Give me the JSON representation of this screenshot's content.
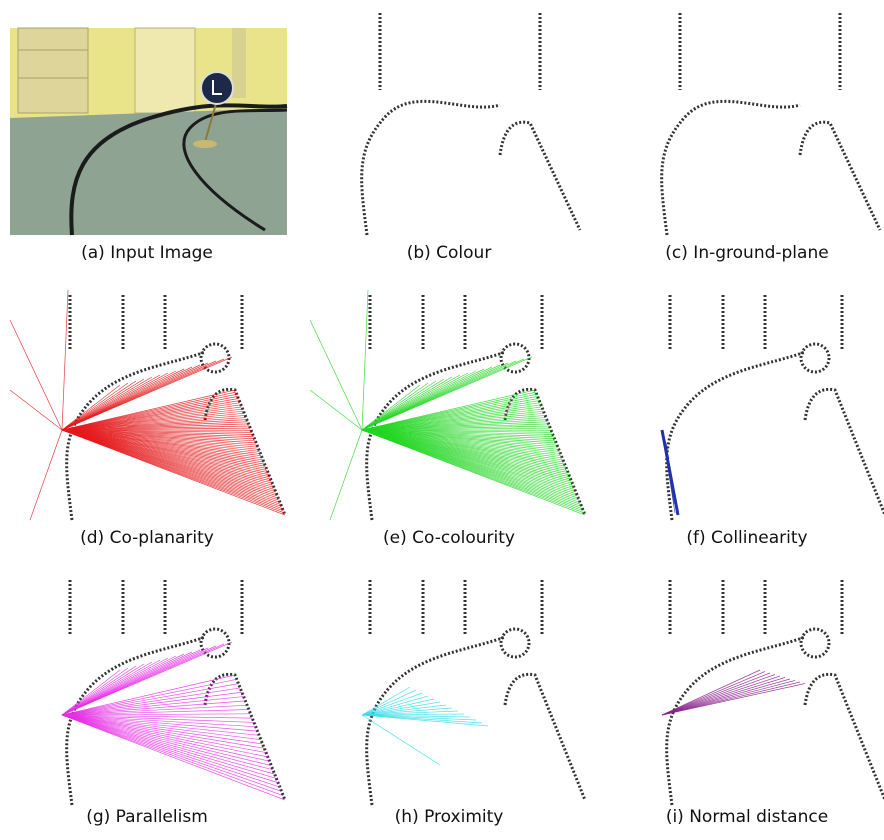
{
  "panels": [
    {
      "caption": "(a) Input Image"
    },
    {
      "caption": "(b) Colour"
    },
    {
      "caption": "(c) In-ground-plane"
    },
    {
      "caption": "(d) Co-planarity"
    },
    {
      "caption": "(e) Co-colourity"
    },
    {
      "caption": "(f) Collinearity"
    },
    {
      "caption": "(g) Parallelism"
    },
    {
      "caption": "(h) Proximity"
    },
    {
      "caption": "(i) Normal distance"
    }
  ]
}
